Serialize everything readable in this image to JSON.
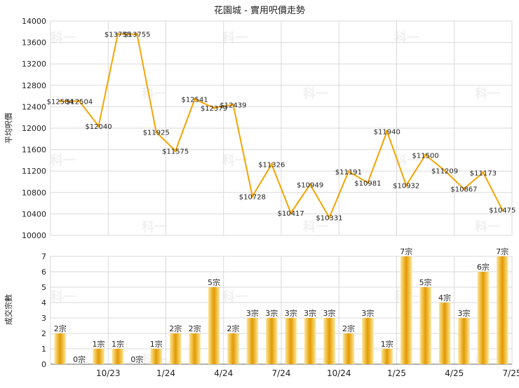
{
  "colors": {
    "line": "#f5a400",
    "bar_light": "#fde79a",
    "bar_dark": "#e39a00",
    "grid": "#d9d9d9",
    "axis": "#666666",
    "text": "#222222",
    "watermark": "#f0f0f0"
  },
  "watermark_text": "科一",
  "chart_data": [
    {
      "type": "line",
      "title": "花園城 - 實用呎價走勢",
      "ylabel": "平均呎價",
      "ylim": [
        10000,
        14000
      ],
      "yticks": [
        "14000",
        "13600",
        "13200",
        "12800",
        "12400",
        "12000",
        "11600",
        "11200",
        "10800",
        "10400",
        "10000"
      ],
      "values": [
        12504,
        12504,
        12040,
        13755,
        13755,
        11925,
        11575,
        12541,
        12379,
        12439,
        10728,
        11326,
        10417,
        10949,
        10331,
        11191,
        10981,
        11940,
        10932,
        11500,
        11209,
        10867,
        11173,
        10475
      ],
      "labels": [
        "$12504",
        "$12504",
        "$12040",
        "$13755",
        "$13755",
        "$11925",
        "$11575",
        "$12541",
        "$12379",
        "$12439",
        "$10728",
        "$11326",
        "$10417",
        "$10949",
        "$10331",
        "$11191",
        "$10981",
        "$11940",
        "$10932",
        "$11500",
        "$11209",
        "$10867",
        "$11173",
        "$10475"
      ],
      "grid": true
    },
    {
      "type": "bar",
      "ylabel": "成交宗數",
      "ylim": [
        0,
        7
      ],
      "yticks": [
        "0",
        "1",
        "2",
        "3",
        "4",
        "5",
        "6",
        "7"
      ],
      "values": [
        2,
        0,
        1,
        1,
        0,
        1,
        2,
        2,
        5,
        2,
        3,
        3,
        3,
        3,
        3,
        2,
        3,
        1,
        7,
        5,
        4,
        3,
        6,
        7
      ],
      "labels": [
        "2宗",
        "0宗",
        "1宗",
        "1宗",
        "0宗",
        "1宗",
        "2宗",
        "2宗",
        "5宗",
        "2宗",
        "3宗",
        "3宗",
        "3宗",
        "3宗",
        "3宗",
        "2宗",
        "3宗",
        "1宗",
        "7宗",
        "5宗",
        "4宗",
        "3宗",
        "6宗",
        "7宗"
      ],
      "x_ticks": [
        "10/23",
        "1/24",
        "4/24",
        "7/24",
        "10/24",
        "1/25",
        "4/25",
        "7/25"
      ],
      "grid": true
    }
  ]
}
